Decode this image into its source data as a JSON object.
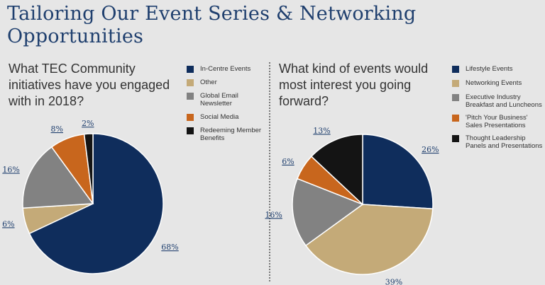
{
  "title": "Tailoring Our Event Series & Networking Opportunities",
  "colors": {
    "navy": "#0f2d5c",
    "tan": "#c4aa78",
    "gray": "#828282",
    "orange": "#c8661d",
    "black": "#141414",
    "text": "#333333",
    "label": "#1f3f6e"
  },
  "chart_data": [
    {
      "type": "pie",
      "title": "What TEC Community initiatives have you engaged with in 2018?",
      "labels": [
        "In-Centre Events",
        "Other",
        "Global Email Newsletter",
        "Social Media",
        "Redeeming Member Benefits"
      ],
      "values": [
        68,
        6,
        16,
        8,
        2
      ],
      "value_labels": [
        "68%",
        "6%",
        "16%",
        "8%",
        "2%"
      ],
      "colors": [
        "#0f2d5c",
        "#c4aa78",
        "#828282",
        "#c8661d",
        "#141414"
      ],
      "legend_position": "right"
    },
    {
      "type": "pie",
      "title": "What kind of events would most interest you going forward?",
      "labels": [
        "Lifestyle Events",
        "Networking Events",
        "Executive Industry Breakfast and Luncheons",
        "'Pitch Your Business' Sales Presentations",
        "Thought Leadership Panels and Presentations"
      ],
      "values": [
        26,
        39,
        16,
        6,
        13
      ],
      "value_labels": [
        "26%",
        "39%",
        "16%",
        "6%",
        "13%"
      ],
      "colors": [
        "#0f2d5c",
        "#c4aa78",
        "#828282",
        "#c8661d",
        "#141414"
      ],
      "legend_position": "right"
    }
  ]
}
